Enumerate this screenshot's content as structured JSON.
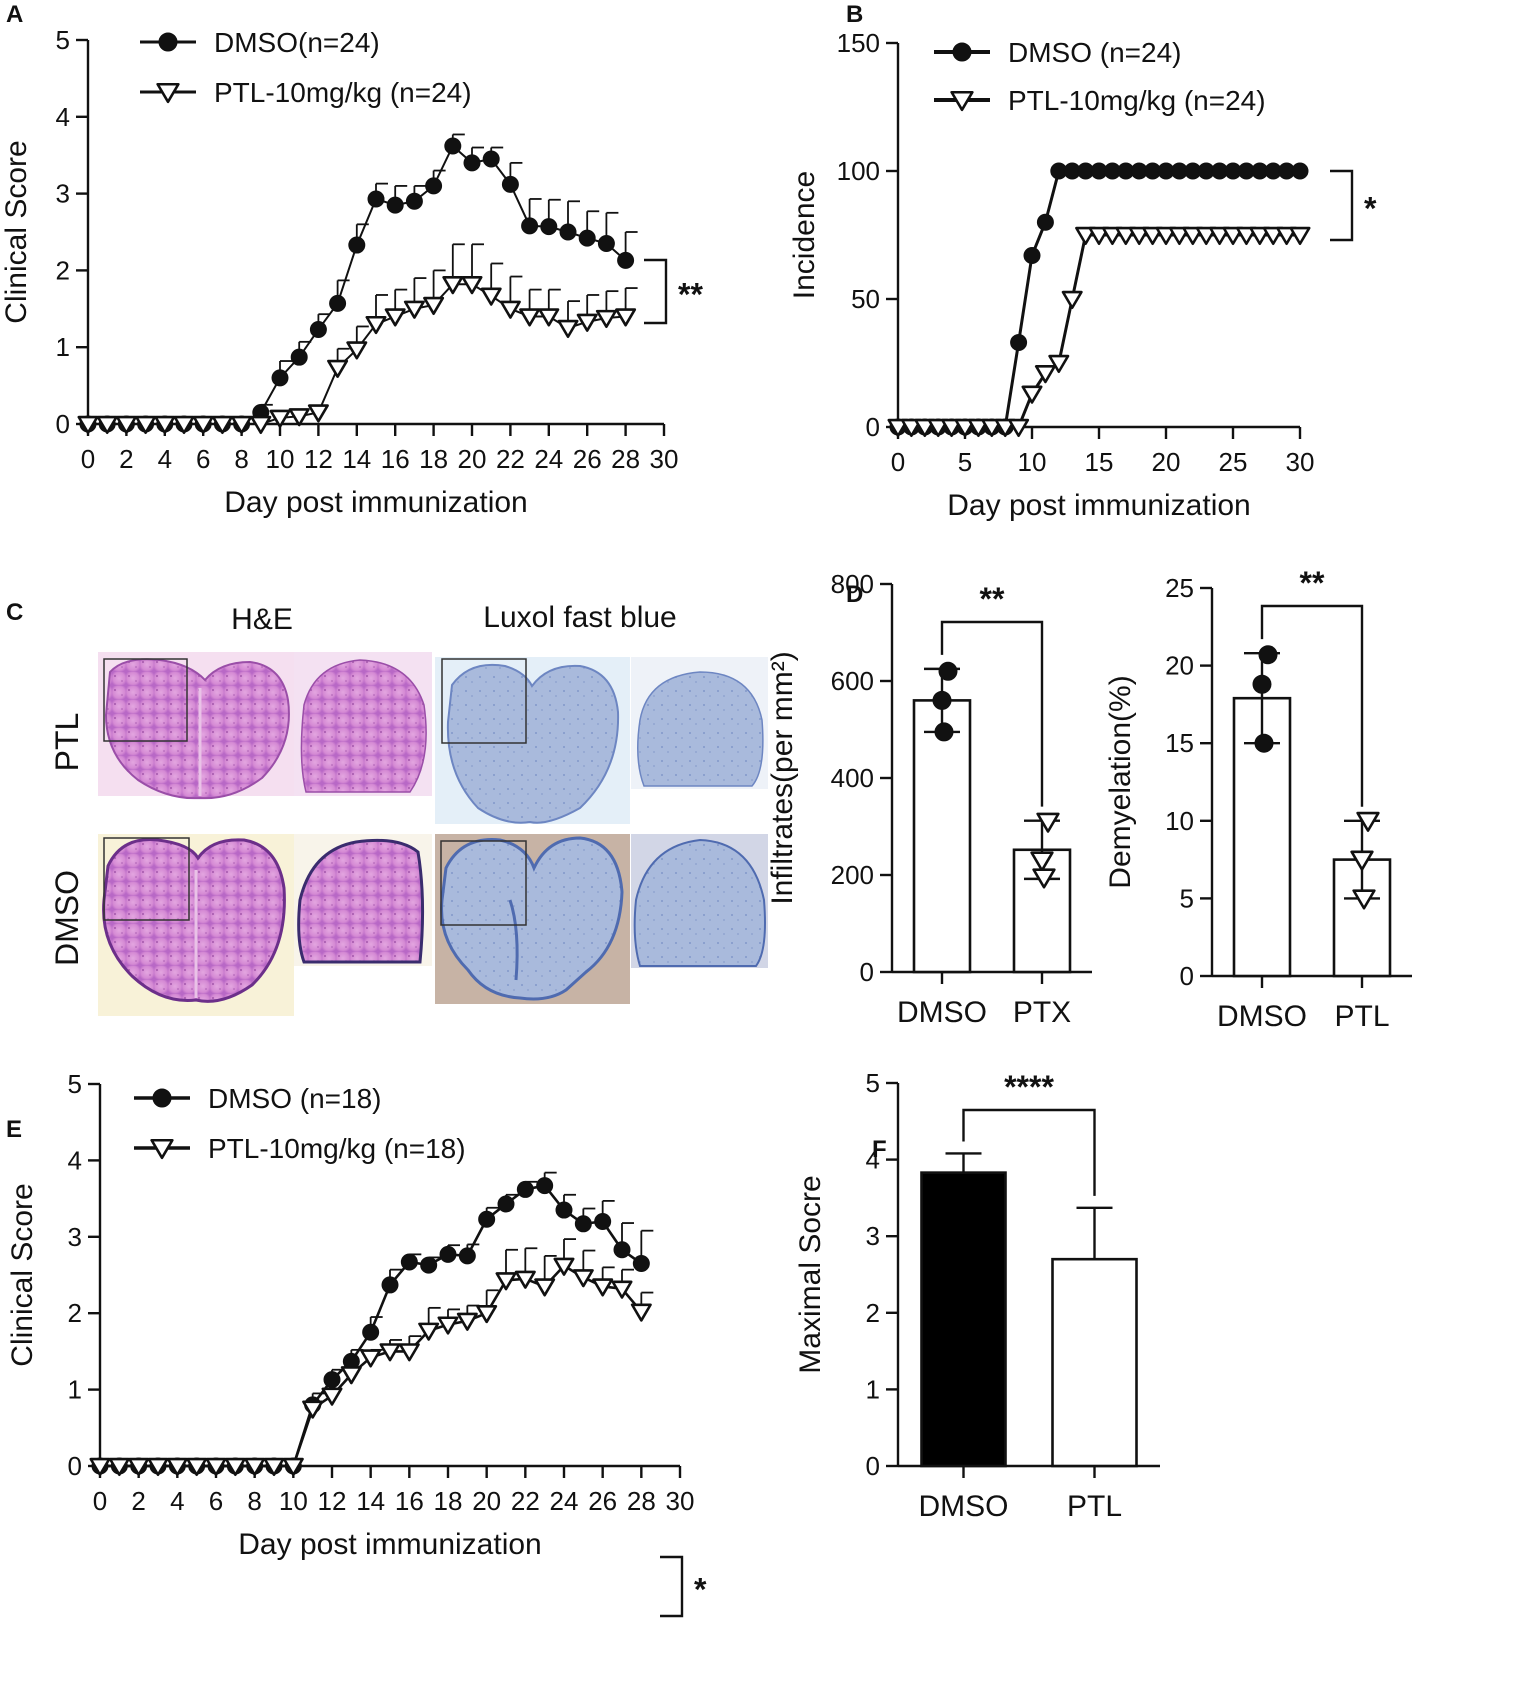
{
  "panels": {
    "A": "A",
    "B": "B",
    "C": "C",
    "D": "D",
    "E": "E",
    "F": "F"
  },
  "colors": {
    "line": "#111111",
    "he_pink": "#d58ad4",
    "he_pink_dark": "#b868c6",
    "lfb_blue": "#9fb2d8",
    "lfb_blue_dark": "#6d86c2",
    "bar_dmso_F": "#000000"
  },
  "chart_data": [
    {
      "id": "A",
      "type": "line",
      "xlabel": "Day post immunization",
      "ylabel": "Clinical Score",
      "xlim": [
        0,
        30
      ],
      "ylim": [
        0,
        5
      ],
      "xticks": [
        0,
        2,
        4,
        6,
        8,
        10,
        12,
        14,
        16,
        18,
        20,
        22,
        24,
        26,
        28,
        30
      ],
      "yticks": [
        0,
        1,
        2,
        3,
        4,
        5
      ],
      "significance": "**",
      "series": [
        {
          "name": "DMSO(n=24)",
          "marker": "circle",
          "x": [
            0,
            1,
            2,
            3,
            4,
            5,
            6,
            7,
            8,
            9,
            10,
            11,
            12,
            13,
            14,
            15,
            16,
            17,
            18,
            19,
            20,
            21,
            22,
            23,
            24,
            25,
            26,
            27,
            28
          ],
          "y": [
            0,
            0,
            0,
            0,
            0,
            0,
            0,
            0,
            0,
            0.15,
            0.6,
            0.87,
            1.23,
            1.57,
            2.33,
            2.93,
            2.85,
            2.9,
            3.1,
            3.62,
            3.4,
            3.45,
            3.12,
            2.58,
            2.57,
            2.5,
            2.42,
            2.35,
            2.13
          ],
          "err": [
            0,
            0,
            0,
            0,
            0,
            0,
            0,
            0,
            0,
            0.1,
            0.22,
            0.2,
            0.2,
            0.3,
            0.27,
            0.2,
            0.25,
            0.2,
            0.2,
            0.15,
            0.2,
            0.15,
            0.28,
            0.35,
            0.35,
            0.4,
            0.35,
            0.4,
            0.37
          ]
        },
        {
          "name": "PTL-10mg/kg (n=24)",
          "marker": "triangle-down",
          "x": [
            0,
            1,
            2,
            3,
            4,
            5,
            6,
            7,
            8,
            9,
            10,
            11,
            12,
            13,
            14,
            15,
            16,
            17,
            18,
            19,
            20,
            21,
            22,
            23,
            24,
            25,
            26,
            27,
            28
          ],
          "y": [
            0,
            0,
            0,
            0,
            0,
            0,
            0,
            0,
            0,
            0,
            0.08,
            0.1,
            0.15,
            0.73,
            0.97,
            1.3,
            1.4,
            1.5,
            1.55,
            1.82,
            1.82,
            1.67,
            1.5,
            1.4,
            1.4,
            1.25,
            1.33,
            1.38,
            1.4
          ],
          "err": [
            0,
            0,
            0,
            0,
            0,
            0,
            0,
            0,
            0,
            0,
            0,
            0,
            0,
            0.25,
            0.3,
            0.38,
            0.35,
            0.4,
            0.45,
            0.52,
            0.52,
            0.42,
            0.42,
            0.35,
            0.35,
            0.35,
            0.35,
            0.35,
            0.37
          ]
        }
      ]
    },
    {
      "id": "B",
      "type": "line",
      "xlabel": "Day post immunization",
      "ylabel": "Incidence",
      "xlim": [
        0,
        30
      ],
      "ylim": [
        0,
        150
      ],
      "xticks": [
        0,
        5,
        10,
        15,
        20,
        25,
        30
      ],
      "yticks": [
        0,
        50,
        100,
        150
      ],
      "significance": "*",
      "series": [
        {
          "name": "DMSO (n=24)",
          "marker": "circle",
          "x": [
            0,
            1,
            2,
            3,
            4,
            5,
            6,
            7,
            8,
            9,
            10,
            11,
            12,
            13,
            14,
            15,
            16,
            17,
            18,
            19,
            20,
            21,
            22,
            23,
            24,
            25,
            26,
            27,
            28,
            29,
            30
          ],
          "y": [
            0,
            0,
            0,
            0,
            0,
            0,
            0,
            0,
            0,
            33,
            67,
            80,
            100,
            100,
            100,
            100,
            100,
            100,
            100,
            100,
            100,
            100,
            100,
            100,
            100,
            100,
            100,
            100,
            100,
            100,
            100
          ]
        },
        {
          "name": "PTL-10mg/kg (n=24)",
          "marker": "triangle-down",
          "x": [
            0,
            1,
            2,
            3,
            4,
            5,
            6,
            7,
            8,
            9,
            10,
            11,
            12,
            13,
            14,
            15,
            16,
            17,
            18,
            19,
            20,
            21,
            22,
            23,
            24,
            25,
            26,
            27,
            28,
            29,
            30
          ],
          "y": [
            0,
            0,
            0,
            0,
            0,
            0,
            0,
            0,
            0,
            0,
            13,
            21,
            25,
            50,
            75,
            75,
            75,
            75,
            75,
            75,
            75,
            75,
            75,
            75,
            75,
            75,
            75,
            75,
            75,
            75,
            75
          ]
        }
      ]
    },
    {
      "id": "D1",
      "type": "bar",
      "ylabel": "Infiltrates(per mm²)",
      "ylim": [
        0,
        800
      ],
      "yticks": [
        0,
        200,
        400,
        600,
        800
      ],
      "categories": [
        "DMSO",
        "PTX"
      ],
      "values": [
        560,
        252
      ],
      "err": [
        65,
        60
      ],
      "points": [
        [
          620,
          560,
          495
        ],
        [
          310,
          230,
          195
        ]
      ],
      "point_markers": [
        "circle",
        "triangle-down"
      ],
      "significance": "**"
    },
    {
      "id": "D2",
      "type": "bar",
      "ylabel": "Demyelation(%)",
      "ylim": [
        0,
        25
      ],
      "yticks": [
        0,
        5,
        10,
        15,
        20,
        25
      ],
      "categories": [
        "DMSO",
        "PTL"
      ],
      "values": [
        17.9,
        7.5
      ],
      "err": [
        2.9,
        2.5
      ],
      "points": [
        [
          20.7,
          18.8,
          15.0
        ],
        [
          10.0,
          7.5,
          5.0
        ]
      ],
      "point_markers": [
        "circle",
        "triangle-down"
      ],
      "significance": "**"
    },
    {
      "id": "E",
      "type": "line",
      "xlabel": "Day post immunization",
      "ylabel": "Clinical Score",
      "xlim": [
        0,
        30
      ],
      "ylim": [
        0,
        5
      ],
      "xticks": [
        0,
        2,
        4,
        6,
        8,
        10,
        12,
        14,
        16,
        18,
        20,
        22,
        24,
        26,
        28,
        30
      ],
      "yticks": [
        0,
        1,
        2,
        3,
        4,
        5
      ],
      "significance": "*",
      "series": [
        {
          "name": "DMSO (n=18)",
          "marker": "circle",
          "x": [
            0,
            1,
            2,
            3,
            4,
            5,
            6,
            7,
            8,
            9,
            10,
            11,
            12,
            13,
            14,
            15,
            16,
            17,
            18,
            19,
            20,
            21,
            22,
            23,
            24,
            25,
            26,
            27,
            28
          ],
          "y": [
            0,
            0,
            0,
            0,
            0,
            0,
            0,
            0,
            0,
            0,
            0,
            0.8,
            1.13,
            1.37,
            1.75,
            2.37,
            2.67,
            2.63,
            2.77,
            2.75,
            3.23,
            3.43,
            3.62,
            3.67,
            3.35,
            3.17,
            3.2,
            2.83,
            2.65
          ],
          "err": [
            0,
            0,
            0,
            0,
            0,
            0,
            0,
            0,
            0,
            0,
            0,
            0.15,
            0.13,
            0.15,
            0.2,
            0.2,
            0.1,
            0.1,
            0.12,
            0.15,
            0.15,
            0.12,
            0.1,
            0.17,
            0.2,
            0.2,
            0.27,
            0.35,
            0.43
          ]
        },
        {
          "name": "PTL-10mg/kg (n=18)",
          "marker": "triangle-down",
          "x": [
            0,
            1,
            2,
            3,
            4,
            5,
            6,
            7,
            8,
            9,
            10,
            11,
            12,
            13,
            14,
            15,
            16,
            17,
            18,
            19,
            20,
            21,
            22,
            23,
            24,
            25,
            26,
            27,
            28
          ],
          "y": [
            0,
            0,
            0,
            0,
            0,
            0,
            0,
            0,
            0,
            0,
            0,
            0.75,
            0.92,
            1.2,
            1.42,
            1.5,
            1.5,
            1.77,
            1.85,
            1.9,
            2.0,
            2.43,
            2.45,
            2.35,
            2.62,
            2.47,
            2.35,
            2.32,
            2.02
          ],
          "err": [
            0,
            0,
            0,
            0,
            0,
            0,
            0,
            0,
            0,
            0,
            0,
            0,
            0,
            0,
            0.1,
            0.15,
            0.2,
            0.3,
            0.2,
            0.2,
            0.3,
            0.4,
            0.4,
            0.4,
            0.35,
            0.35,
            0.25,
            0.25,
            0.25
          ]
        }
      ]
    },
    {
      "id": "F",
      "type": "bar",
      "ylabel": "Maximal Socre",
      "ylim": [
        0,
        5
      ],
      "yticks": [
        0,
        1,
        2,
        3,
        4,
        5
      ],
      "categories": [
        "DMSO",
        "PTL"
      ],
      "values": [
        3.83,
        2.7
      ],
      "err": [
        0.25,
        0.67
      ],
      "fills": [
        "#000000",
        "#ffffff"
      ],
      "significance": "****"
    }
  ],
  "histology": {
    "columns": [
      "H&E",
      "Luxol fast blue"
    ],
    "rows": [
      "PTL",
      "DMSO"
    ]
  }
}
